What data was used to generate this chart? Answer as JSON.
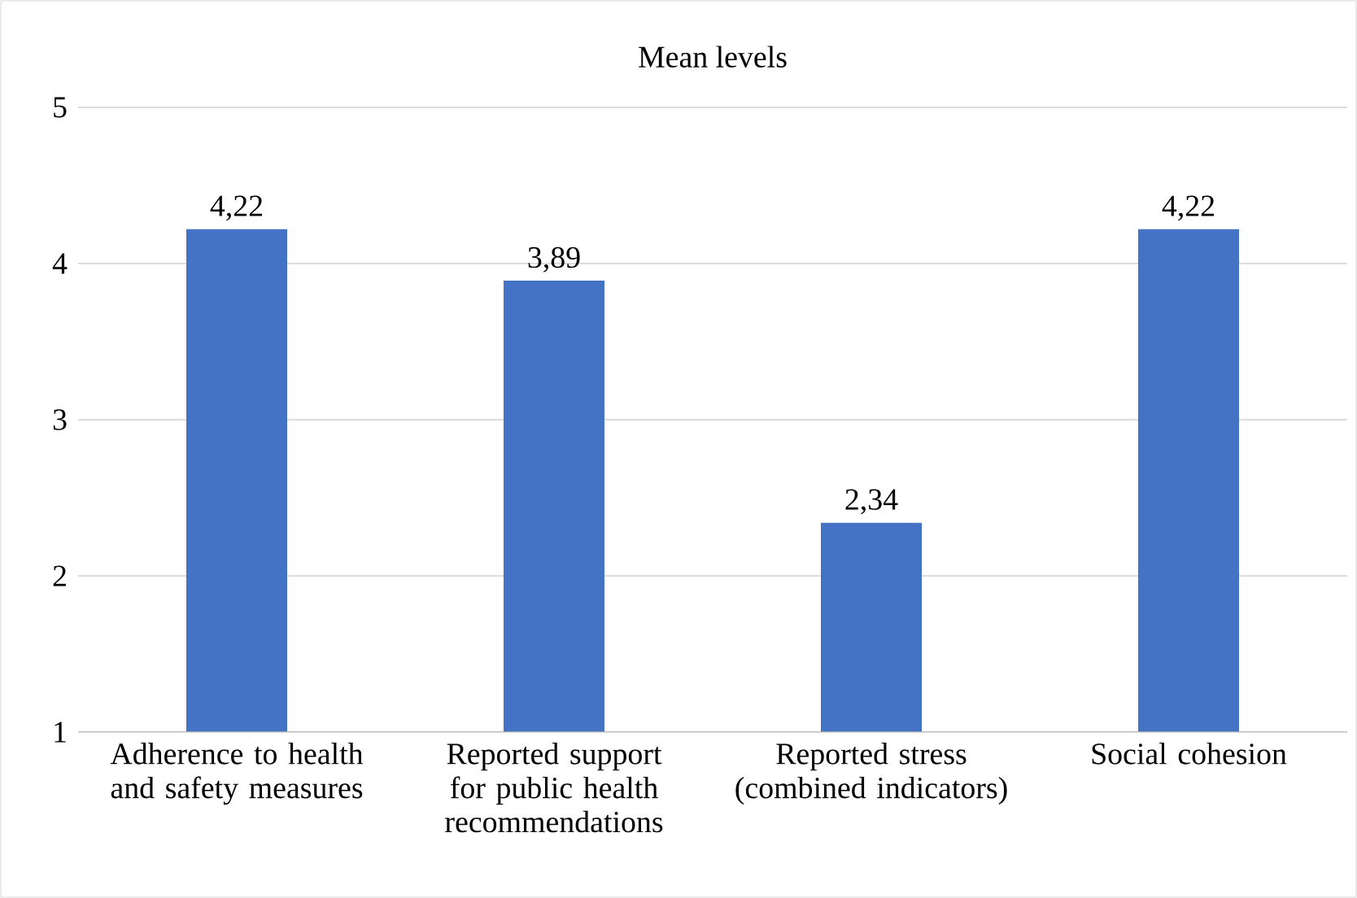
{
  "chart_data": {
    "type": "bar",
    "title": "Mean levels",
    "categories": [
      "Adherence to health and safety measures",
      "Reported support for public health recommendations",
      "Reported stress (combined indicators)",
      "Social cohesion"
    ],
    "values": [
      4.22,
      3.89,
      2.34,
      4.22
    ],
    "value_labels": [
      "4,22",
      "3,89",
      "2,34",
      "4,22"
    ],
    "color": "#4472c4",
    "ylim": [
      1,
      5
    ],
    "yticks": [
      1,
      2,
      3,
      4,
      5
    ],
    "grid": "y"
  }
}
